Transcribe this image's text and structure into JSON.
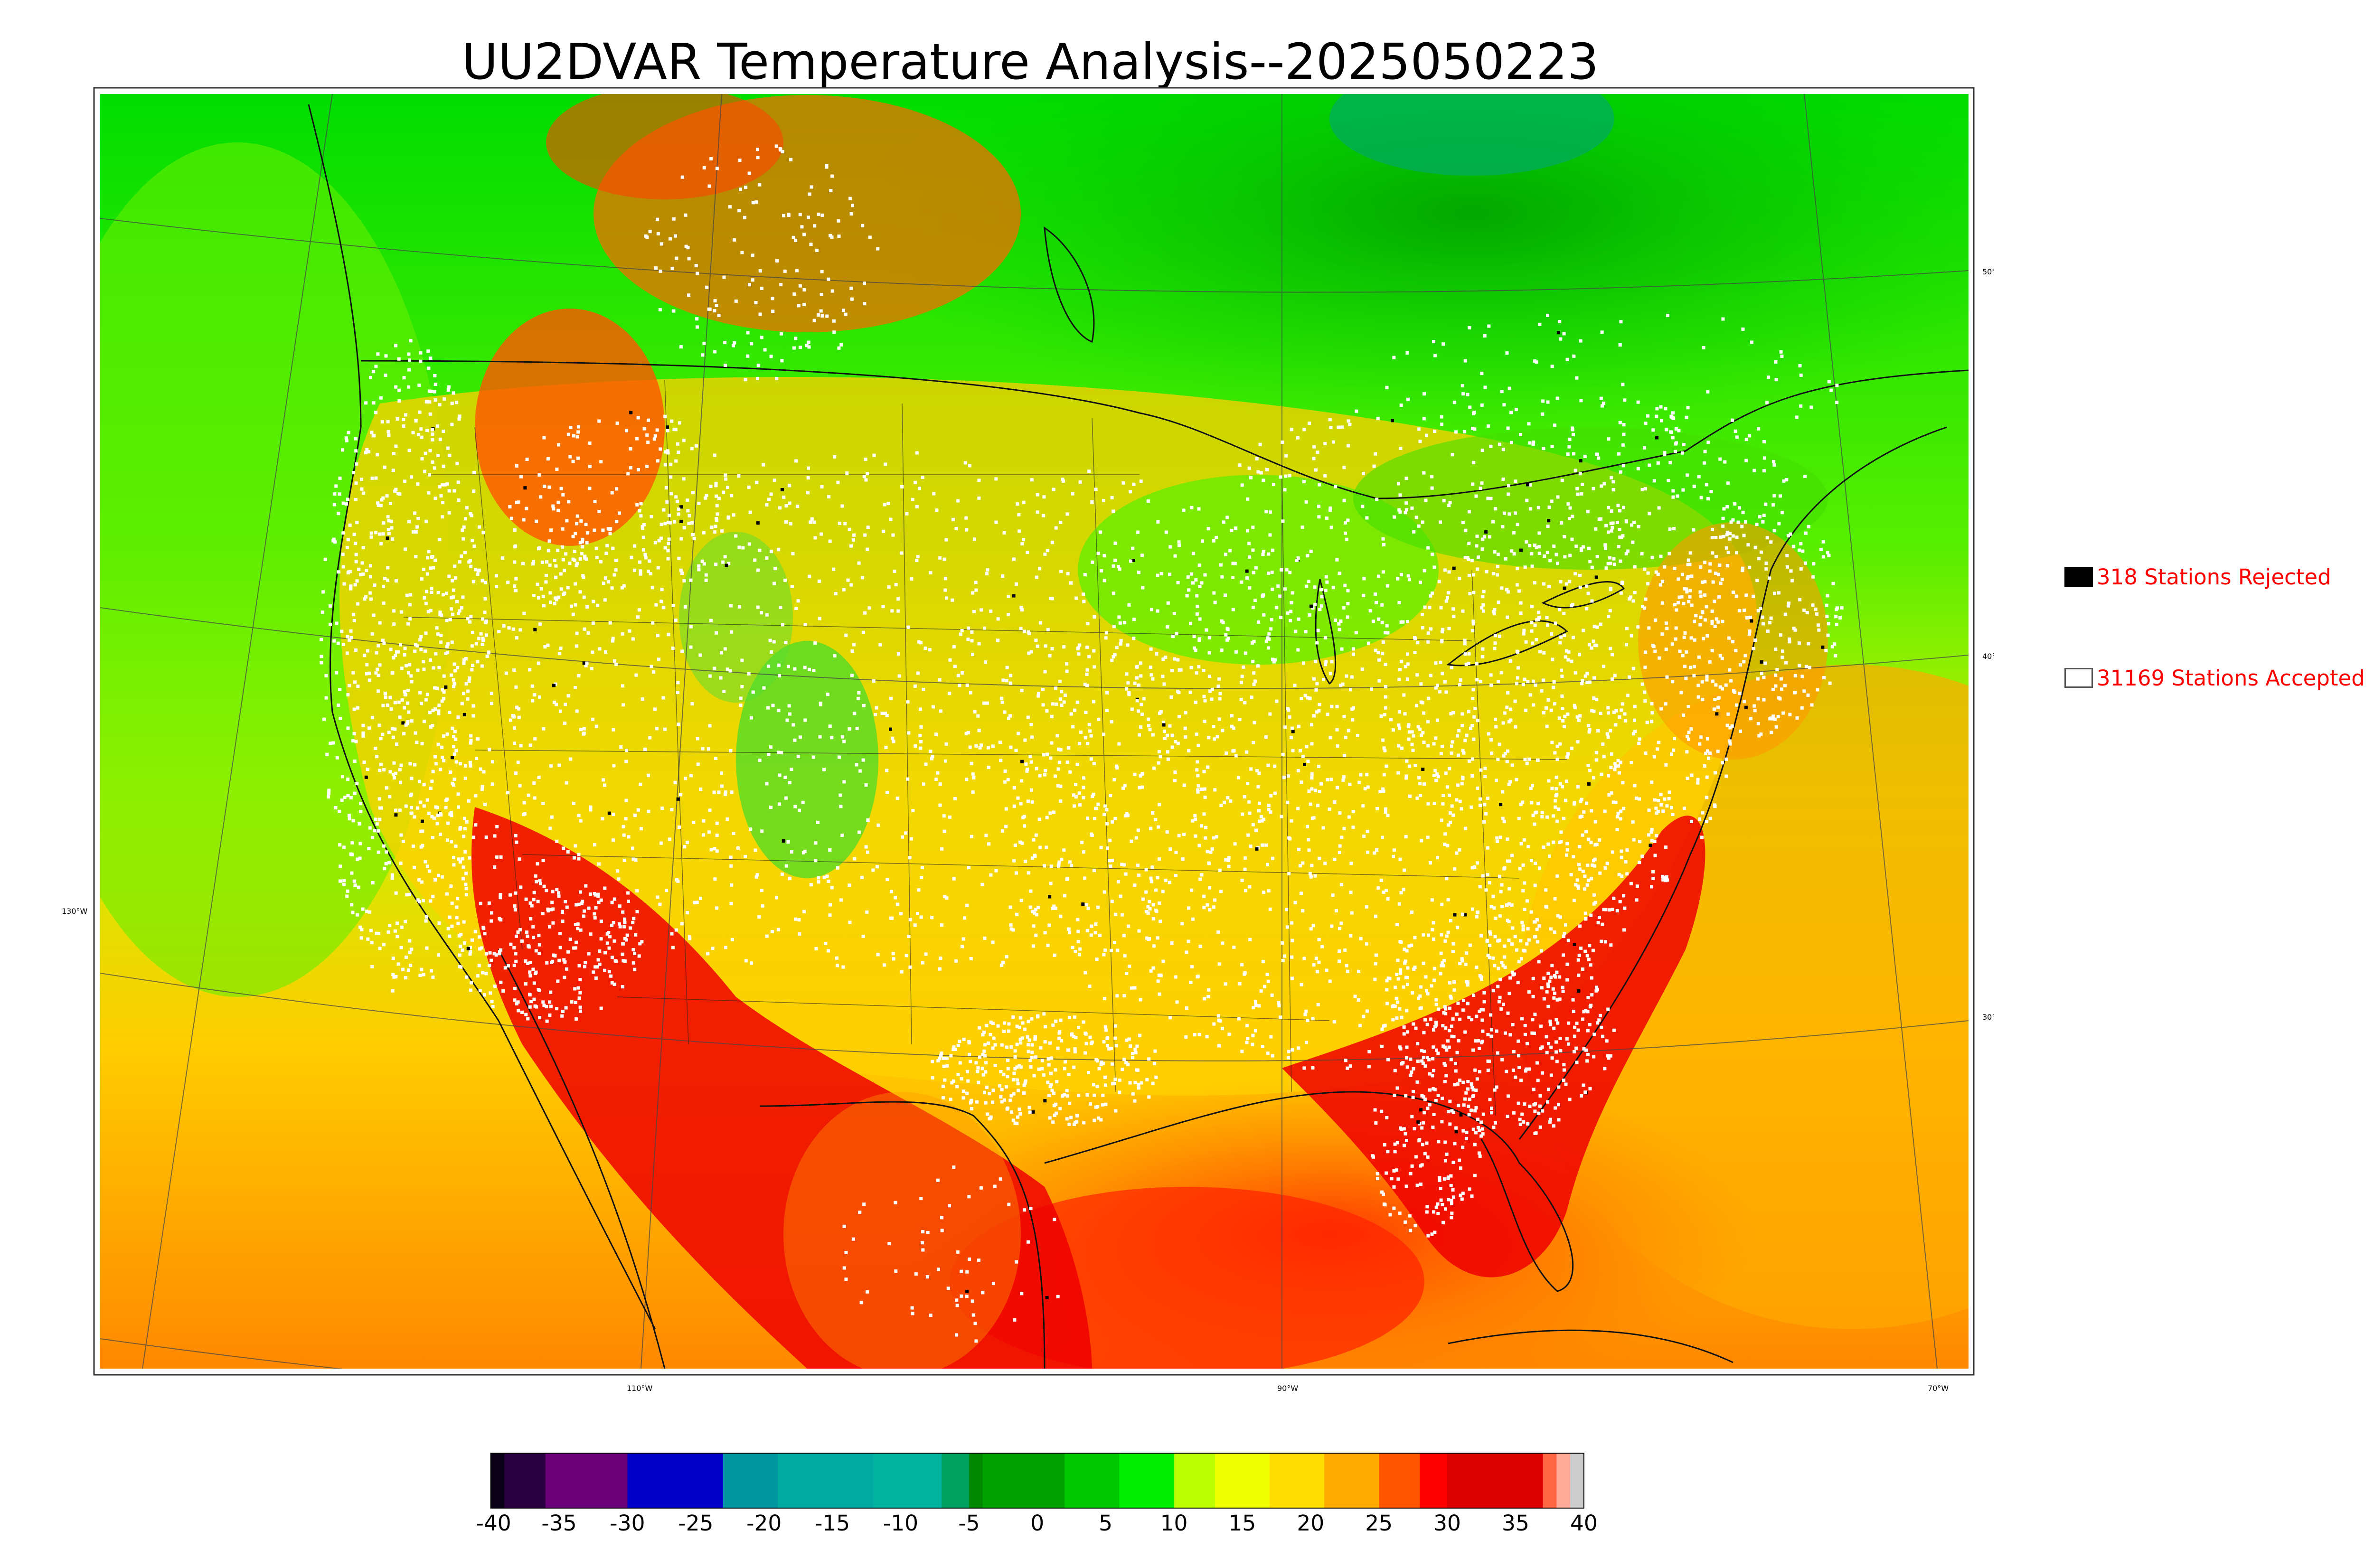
{
  "title": "UU2DVAR Temperature Analysis--2025050223",
  "legend": {
    "rejected": {
      "count_label": "318 Stations Rejected",
      "color": "#000000"
    },
    "accepted": {
      "count_label": "31169 Stations Accepted",
      "color": "#ffffff"
    }
  },
  "graticule": {
    "lon_labels": [
      "130°W",
      "110°W",
      "90°W",
      "70°W"
    ],
    "lat_labels": [
      "50°N",
      "40°N",
      "30°N"
    ]
  },
  "colorbar": {
    "ticks": [
      "-40",
      "-35",
      "-30",
      "-25",
      "-20",
      "-15",
      "-10",
      "-5",
      "0",
      "5",
      "10",
      "15",
      "20",
      "25",
      "30",
      "35",
      "40"
    ],
    "min": -40,
    "max": 40,
    "bands": [
      {
        "from": -40,
        "to": -39,
        "color": "#0a0018"
      },
      {
        "from": -39,
        "to": -36,
        "color": "#2a0040"
      },
      {
        "from": -36,
        "to": -30,
        "color": "#6a0078"
      },
      {
        "from": -30,
        "to": -23,
        "color": "#0000c8"
      },
      {
        "from": -23,
        "to": -19,
        "color": "#0096a0"
      },
      {
        "from": -19,
        "to": -12,
        "color": "#00aaa0"
      },
      {
        "from": -12,
        "to": -7,
        "color": "#00b4a0"
      },
      {
        "from": -7,
        "to": -5,
        "color": "#00a060"
      },
      {
        "from": -5,
        "to": -4,
        "color": "#008800"
      },
      {
        "from": -4,
        "to": 2,
        "color": "#00a000"
      },
      {
        "from": 2,
        "to": 6,
        "color": "#00c800"
      },
      {
        "from": 6,
        "to": 10,
        "color": "#00ee00"
      },
      {
        "from": 10,
        "to": 13,
        "color": "#bbff00"
      },
      {
        "from": 13,
        "to": 17,
        "color": "#eeff00"
      },
      {
        "from": 17,
        "to": 21,
        "color": "#ffdd00"
      },
      {
        "from": 21,
        "to": 25,
        "color": "#ffaa00"
      },
      {
        "from": 25,
        "to": 28,
        "color": "#ff5500"
      },
      {
        "from": 28,
        "to": 30,
        "color": "#ff0000"
      },
      {
        "from": 30,
        "to": 37,
        "color": "#dd0000"
      },
      {
        "from": 37,
        "to": 38,
        "color": "#ff6644"
      },
      {
        "from": 38,
        "to": 39,
        "color": "#ffaa99"
      },
      {
        "from": 39,
        "to": 40,
        "color": "#cccccc"
      }
    ]
  }
}
